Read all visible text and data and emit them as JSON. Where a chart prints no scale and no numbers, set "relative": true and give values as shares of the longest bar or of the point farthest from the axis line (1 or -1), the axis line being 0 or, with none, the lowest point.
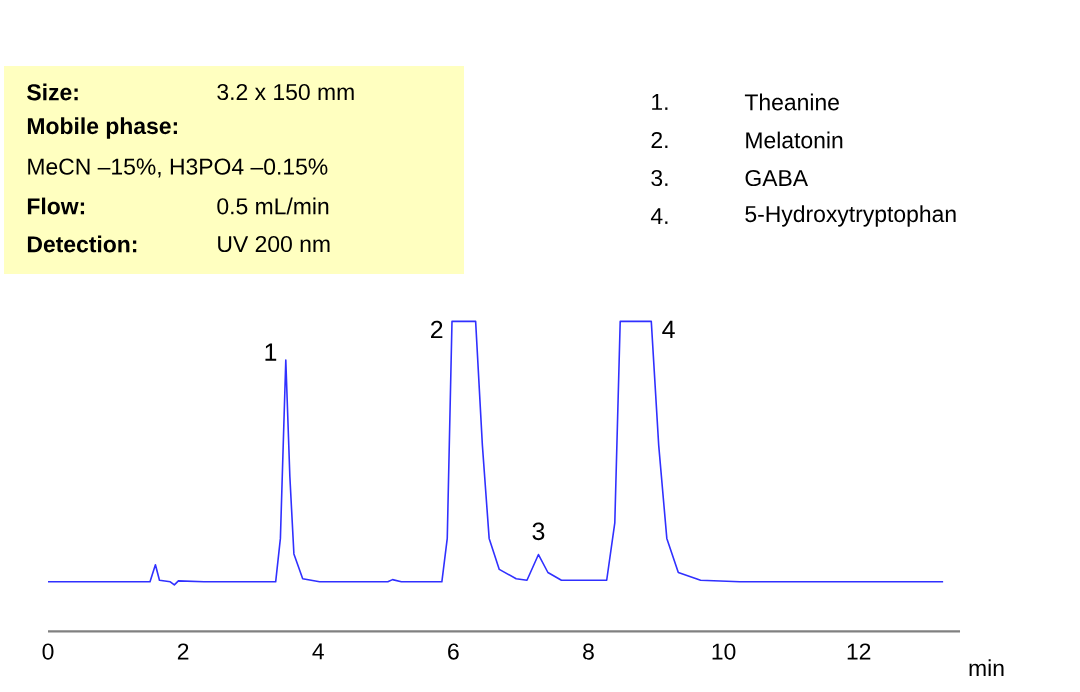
{
  "chart_data": {
    "type": "line",
    "relative": true,
    "xlabel": "min",
    "xlim": [
      0,
      13.5
    ],
    "xticks": [
      0,
      2,
      4,
      6,
      8,
      10,
      12
    ],
    "marker": "none",
    "line_style": "solid",
    "x": [
      0,
      1.51,
      1.59,
      1.65,
      1.81,
      1.87,
      1.93,
      2.31,
      3.37,
      3.44,
      3.52,
      3.58,
      3.64,
      3.77,
      4.02,
      5.03,
      5.1,
      5.23,
      5.83,
      5.91,
      5.98,
      6.33,
      6.43,
      6.53,
      6.68,
      6.93,
      7.09,
      7.26,
      7.4,
      7.6,
      8.27,
      8.39,
      8.47,
      8.93,
      9.04,
      9.16,
      9.33,
      9.66,
      10.24,
      13.25
    ],
    "series": [
      {
        "color": "#3030ff",
        "values": [
          0.16,
          0.16,
          0.215,
          0.165,
          0.16,
          0.15,
          0.163,
          0.16,
          0.16,
          0.3,
          0.875,
          0.5,
          0.25,
          0.17,
          0.16,
          0.16,
          0.167,
          0.16,
          0.16,
          0.3,
          1.0,
          1.0,
          0.6,
          0.3,
          0.2,
          0.17,
          0.165,
          0.248,
          0.19,
          0.165,
          0.165,
          0.35,
          1.0,
          1.0,
          0.6,
          0.3,
          0.19,
          0.165,
          0.16,
          0.16
        ]
      }
    ],
    "annotations": [
      {
        "text": "1",
        "x": 3.52,
        "y": 0.875
      },
      {
        "text": "2",
        "x": 5.98,
        "y": 1.0
      },
      {
        "text": "3",
        "x": 7.26,
        "y": 0.248
      },
      {
        "text": "4",
        "x": 8.93,
        "y": 1.0
      },
      "Size:",
      "3.2 x 150 mm",
      "Mobile phase:",
      "MeCN –15%, H3PO4 –0.15%",
      "Flow:",
      "0.5 mL/min",
      "Detection:",
      "UV 200 nm",
      "1.",
      "Theanine",
      "2.",
      "Melatonin",
      "3.",
      "GABA",
      "4.",
      "5-Hydroxytryptophan"
    ]
  }
}
